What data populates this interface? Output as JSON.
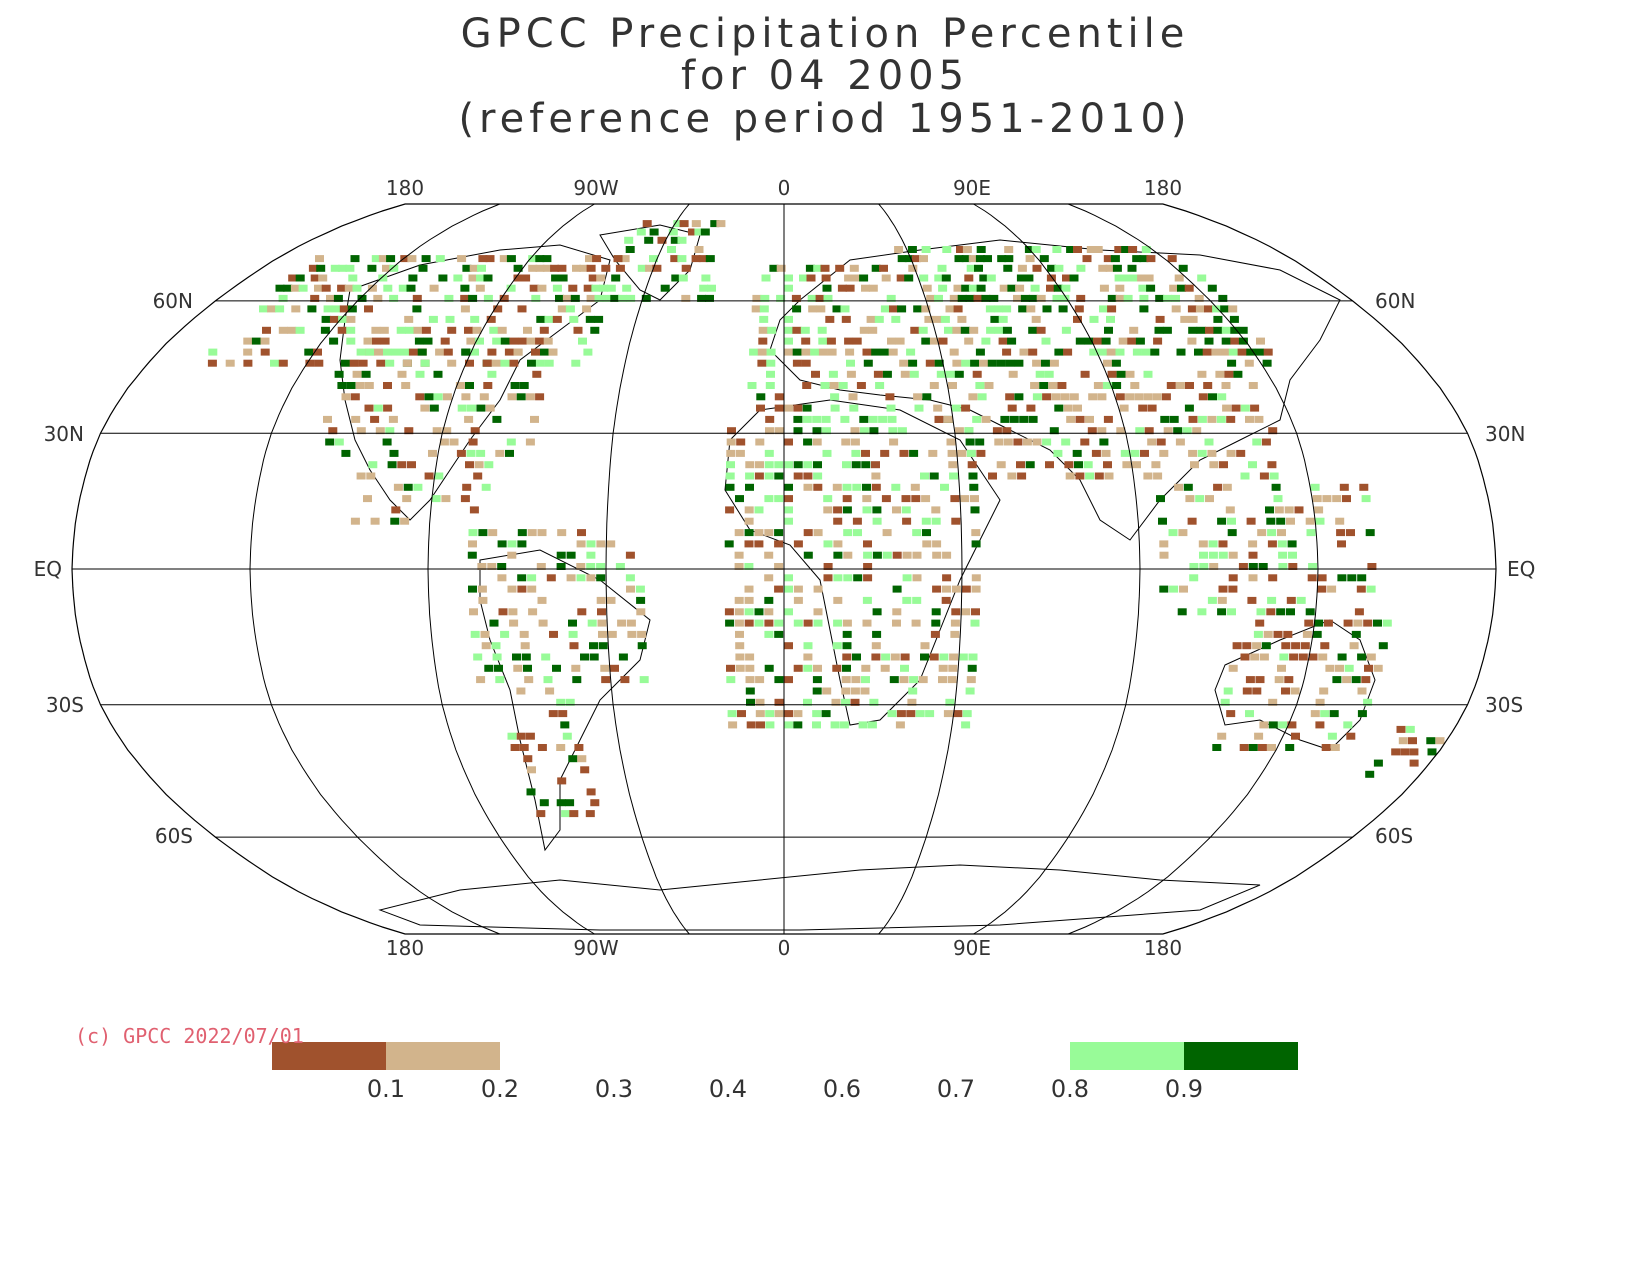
{
  "title": {
    "line1": "GPCC Precipitation Percentile",
    "line2": "for 04 2005",
    "line3": "(reference period 1951-2010)"
  },
  "map": {
    "projection": "Robinson",
    "top_longitude_labels": [
      "180",
      "90W",
      "0",
      "90E",
      "180"
    ],
    "bottom_longitude_labels": [
      "180",
      "90W",
      "0",
      "90E",
      "180"
    ],
    "left_latitude_labels": [
      "60N",
      "30N",
      "EQ",
      "30S",
      "60S"
    ],
    "right_latitude_labels": [
      "60N",
      "30N",
      "EQ",
      "30S",
      "60S"
    ],
    "colors": {
      "very_dry": "#a0522d",
      "dry": "#d2b48c",
      "wet": "#98fb98",
      "very_wet": "#006400",
      "coast": "#000000"
    }
  },
  "copyright": "(c) GPCC 2022/07/01",
  "legend": {
    "tick_labels": [
      "0.1",
      "0.2",
      "0.3",
      "0.4",
      "0.6",
      "0.7",
      "0.8",
      "0.9"
    ],
    "bins": [
      {
        "from": 0.0,
        "to": 0.1,
        "color": "#a0522d"
      },
      {
        "from": 0.1,
        "to": 0.2,
        "color": "#d2b48c"
      },
      {
        "from": 0.8,
        "to": 0.9,
        "color": "#98fb98"
      },
      {
        "from": 0.9,
        "to": 1.0,
        "color": "#006400"
      }
    ]
  }
}
